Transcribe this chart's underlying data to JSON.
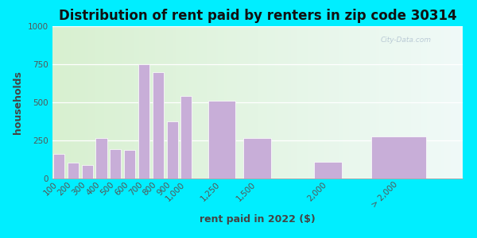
{
  "title": "Distribution of rent paid by renters in zip code 30314",
  "xlabel": "rent paid in 2022 ($)",
  "ylabel": "households",
  "bar_labels": [
    "100",
    "200",
    "300",
    "400",
    "500",
    "600",
    "700",
    "800",
    "900",
    "1,000",
    "1,250",
    "1,500",
    "2,000",
    "> 2,000"
  ],
  "bar_positions": [
    100,
    200,
    300,
    400,
    500,
    600,
    700,
    800,
    900,
    1000,
    1250,
    1500,
    2000,
    2500
  ],
  "bar_widths": [
    90,
    90,
    90,
    90,
    90,
    90,
    90,
    90,
    90,
    90,
    220,
    220,
    220,
    440
  ],
  "bar_values": [
    160,
    105,
    90,
    265,
    195,
    190,
    750,
    700,
    375,
    540,
    510,
    265,
    110,
    275
  ],
  "bar_color": "#c8aed8",
  "bar_edgecolor": "#ffffff",
  "ylim": [
    0,
    1000
  ],
  "yticks": [
    0,
    250,
    500,
    750,
    1000
  ],
  "xlim": [
    55,
    2950
  ],
  "bg_outer": "#00eeff",
  "bg_top_color": "#d8f0d0",
  "bg_bottom_color": "#f0faf8",
  "title_fontsize": 12,
  "axis_label_fontsize": 9,
  "tick_fontsize": 7.5,
  "watermark": "City-Data.com"
}
